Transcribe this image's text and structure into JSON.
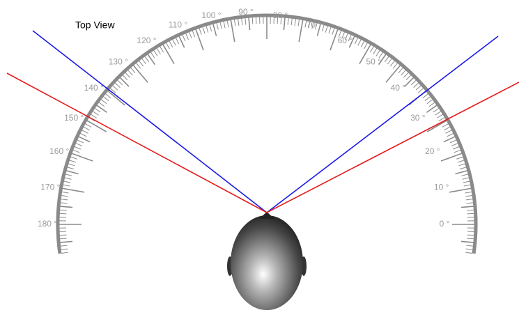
{
  "title": "Top View",
  "scale": {
    "labels": [
      "0 °",
      "10 °",
      "20 °",
      "30 °",
      "40 °",
      "50 °",
      "60 °",
      "70 °",
      "80 °",
      "90 °",
      "100 °",
      "110 °",
      "120 °",
      "130 °",
      "140 °",
      "150 °",
      "160 °",
      "170 °",
      "180 °"
    ]
  }
}
